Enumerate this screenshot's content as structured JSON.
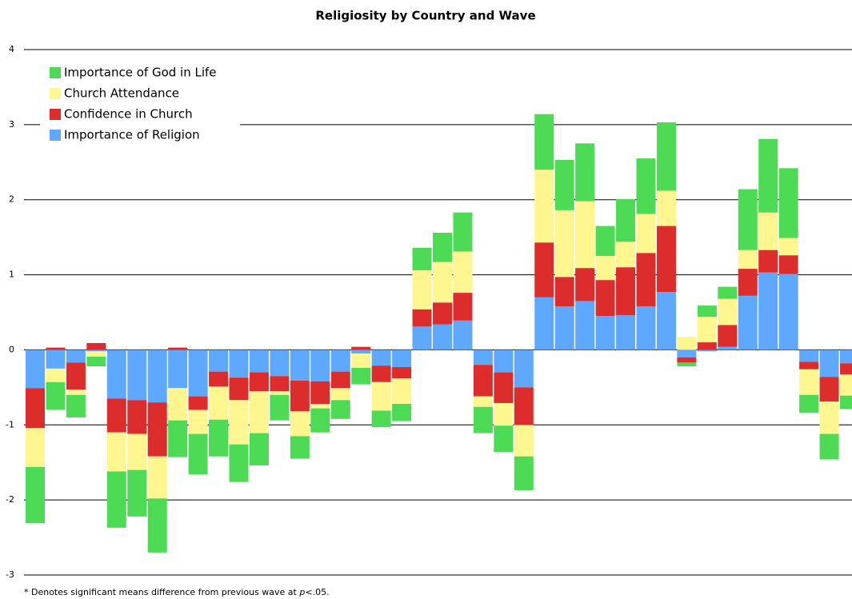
{
  "chart_data": {
    "type": "stacked_bar",
    "title": "Religiosity by Country and Wave",
    "categories": [
      null,
      null,
      null,
      null,
      null,
      null,
      null,
      null,
      null,
      null,
      null,
      null,
      null,
      null,
      null,
      null,
      null,
      null,
      null,
      null,
      null,
      null,
      null,
      null,
      null,
      null,
      null,
      null,
      null,
      null,
      null,
      null,
      null,
      null,
      null,
      null,
      null,
      null,
      null,
      null,
      null
    ],
    "series": [
      {
        "name": "Importance of God in Life",
        "color": "#4ddb55",
        "values": [
          -0.75,
          -0.37,
          -0.3,
          -0.13,
          -0.75,
          -0.62,
          -0.72,
          -0.49,
          -0.54,
          -0.49,
          -0.5,
          -0.43,
          -0.34,
          -0.3,
          -0.32,
          -0.25,
          -0.22,
          -0.22,
          -0.23,
          0.3,
          0.39,
          0.52,
          -0.35,
          -0.35,
          -0.45,
          0.74,
          0.67,
          0.77,
          0.4,
          0.57,
          0.74,
          0.91,
          -0.05,
          0.15,
          0.16,
          0.81,
          0.98,
          0.93,
          -0.24,
          -0.34,
          -0.18
        ]
      },
      {
        "name": "Church Attendance",
        "color": "#fff68f",
        "values": [
          -0.52,
          -0.18,
          -0.07,
          -0.07,
          -0.52,
          -0.48,
          -0.56,
          -0.43,
          -0.32,
          -0.44,
          -0.59,
          -0.56,
          -0.05,
          -0.33,
          -0.06,
          -0.16,
          -0.19,
          -0.38,
          -0.34,
          0.52,
          0.54,
          0.55,
          -0.14,
          -0.3,
          -0.42,
          0.97,
          0.89,
          0.89,
          0.32,
          0.34,
          0.52,
          0.47,
          0.17,
          0.34,
          0.35,
          0.25,
          0.5,
          0.23,
          -0.34,
          -0.43,
          -0.28
        ]
      },
      {
        "name": "Confidence in Church",
        "color": "#dd2c2c",
        "values": [
          -0.53,
          0.03,
          -0.36,
          0.09,
          -0.45,
          -0.45,
          -0.72,
          0.03,
          -0.18,
          -0.2,
          -0.3,
          -0.25,
          -0.2,
          -0.41,
          -0.3,
          -0.22,
          0.04,
          -0.22,
          -0.15,
          0.23,
          0.29,
          0.37,
          -0.42,
          -0.41,
          -0.5,
          0.73,
          0.39,
          0.44,
          0.48,
          0.64,
          0.71,
          0.88,
          -0.07,
          0.1,
          0.29,
          0.36,
          0.3,
          0.25,
          -0.1,
          -0.33,
          -0.15
        ]
      },
      {
        "name": "Importance of Religion",
        "color": "#5ea8ff",
        "values": [
          -0.51,
          -0.25,
          -0.17,
          -0.02,
          -0.65,
          -0.67,
          -0.7,
          -0.51,
          -0.62,
          -0.29,
          -0.37,
          -0.3,
          -0.35,
          -0.41,
          -0.42,
          -0.29,
          -0.05,
          -0.21,
          -0.23,
          0.31,
          0.34,
          0.39,
          -0.2,
          -0.3,
          -0.5,
          0.7,
          0.58,
          0.65,
          0.45,
          0.46,
          0.58,
          0.77,
          -0.1,
          -0.02,
          0.04,
          0.72,
          1.03,
          1.01,
          -0.16,
          -0.36,
          -0.18
        ]
      }
    ],
    "ylim": [
      -3,
      4
    ],
    "yticks": [
      -3,
      -2,
      -1,
      0,
      1,
      2,
      3,
      4
    ],
    "grid": true,
    "legend": "upper left",
    "footnote": [
      "* Denotes significant means difference from previous wave at ",
      "p",
      "<.05."
    ]
  }
}
